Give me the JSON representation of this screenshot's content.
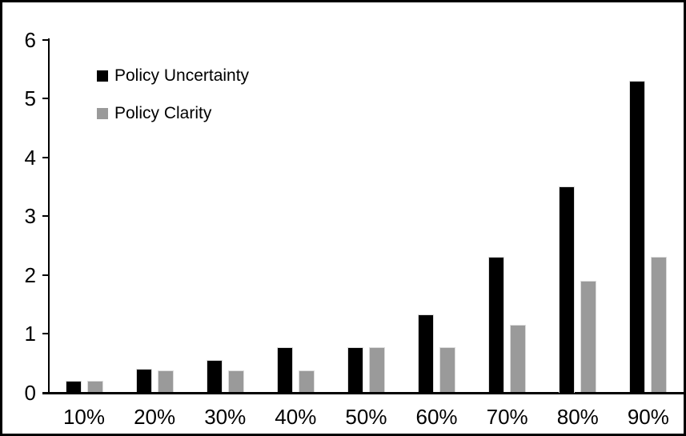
{
  "figure": {
    "background_color": "#ffffff",
    "frame_color": "#000000"
  },
  "chart_data": {
    "type": "bar",
    "title": "",
    "xlabel": "",
    "ylabel": "",
    "categories": [
      "10%",
      "20%",
      "30%",
      "40%",
      "50%",
      "60%",
      "70%",
      "80%",
      "90%"
    ],
    "series": [
      {
        "name": "Policy Uncertainty",
        "color": "#000000",
        "values": [
          0.2,
          0.4,
          0.55,
          0.77,
          0.77,
          1.33,
          2.3,
          3.5,
          5.3
        ]
      },
      {
        "name": "Policy Clarity",
        "color": "#9a9a9a",
        "values": [
          0.2,
          0.38,
          0.38,
          0.38,
          0.77,
          0.77,
          1.15,
          1.9,
          2.3
        ]
      }
    ],
    "ylim": [
      0,
      6
    ],
    "y_ticks": [
      0,
      1,
      2,
      3,
      4,
      5,
      6
    ],
    "grid": false,
    "legend_position": "top-left"
  }
}
